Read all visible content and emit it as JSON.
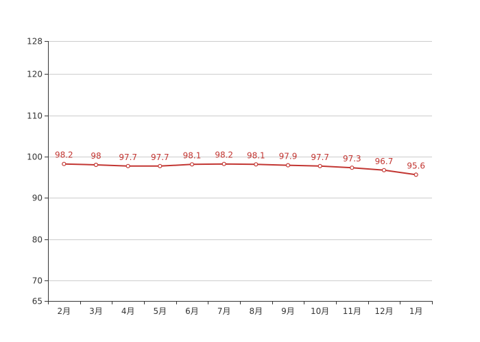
{
  "chart_data": {
    "type": "line",
    "categories": [
      "2月",
      "3月",
      "4月",
      "5月",
      "6月",
      "7月",
      "8月",
      "9月",
      "10月",
      "11月",
      "12月",
      "1月"
    ],
    "series": [
      {
        "values": [
          98.2,
          98,
          97.7,
          97.7,
          98.1,
          98.2,
          98.1,
          97.9,
          97.7,
          97.3,
          96.7,
          95.6
        ],
        "color": "#c23531"
      }
    ],
    "ylim": [
      65,
      128
    ],
    "yticks": [
      65,
      70,
      80,
      90,
      100,
      110,
      120,
      128
    ],
    "grid": true,
    "data_labels": true,
    "marker": "hollow-circle"
  }
}
